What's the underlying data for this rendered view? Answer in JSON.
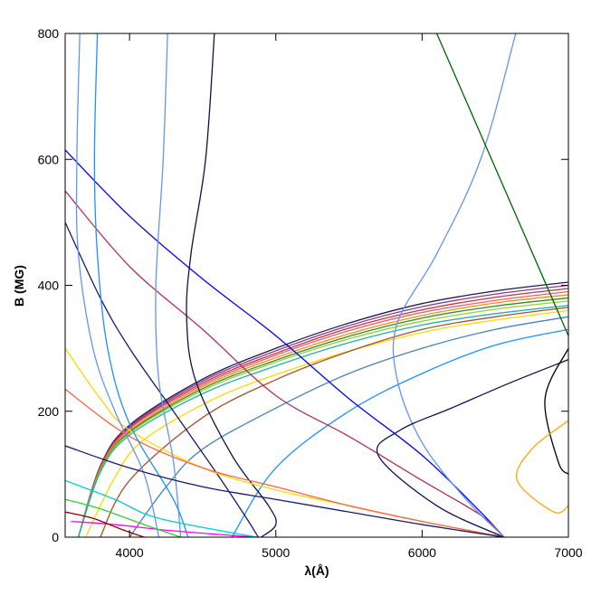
{
  "chart_data": {
    "type": "line",
    "xlabel": "λ(Å)",
    "ylabel": "B (MG)",
    "xlim": [
      3560,
      7000
    ],
    "ylim": [
      0,
      800
    ],
    "xticks": [
      4000,
      5000,
      6000,
      7000
    ],
    "yticks": [
      0,
      200,
      400,
      600,
      800
    ],
    "series": [
      {
        "color": "#1a1a5e",
        "x": [
          3650,
          3800,
          4000,
          4500,
          5000,
          5500,
          6000,
          6500,
          7000
        ],
        "values": [
          0,
          113,
          178,
          251,
          300,
          340,
          371,
          391,
          405
        ]
      },
      {
        "color": "#8b3a8b",
        "x": [
          3650,
          3800,
          4000,
          4500,
          5000,
          5500,
          6000,
          6500,
          7000
        ],
        "values": [
          0,
          112,
          176,
          248,
          296,
          336,
          366,
          386,
          400
        ]
      },
      {
        "color": "#c8303a",
        "x": [
          3650,
          3800,
          4000,
          4500,
          5000,
          5500,
          6000,
          6500,
          7000
        ],
        "values": [
          0,
          111,
          174,
          245,
          292,
          332,
          361,
          381,
          395
        ]
      },
      {
        "color": "#e0607a",
        "x": [
          3650,
          3800,
          4000,
          4500,
          5000,
          5500,
          6000,
          6500,
          7000
        ],
        "values": [
          0,
          109,
          172,
          242,
          289,
          328,
          357,
          376,
          390
        ]
      },
      {
        "color": "#ff8c00",
        "x": [
          3650,
          3800,
          4000,
          4500,
          5000,
          5500,
          6000,
          6500,
          7000
        ],
        "values": [
          0,
          108,
          169,
          239,
          285,
          323,
          352,
          372,
          385
        ]
      },
      {
        "color": "#2e8b2e",
        "x": [
          3650,
          3800,
          4000,
          4500,
          5000,
          5500,
          6000,
          6500,
          7000
        ],
        "values": [
          0,
          106,
          167,
          236,
          281,
          319,
          348,
          367,
          380
        ]
      },
      {
        "color": "#9acd32",
        "x": [
          3650,
          3800,
          4000,
          4500,
          5000,
          5500,
          6000,
          6500,
          7000
        ],
        "values": [
          0,
          105,
          165,
          233,
          278,
          315,
          343,
          362,
          375
        ]
      },
      {
        "color": "#20b2aa",
        "x": [
          3650,
          3800,
          4000,
          4500,
          5000,
          5500,
          6000,
          6500,
          7000
        ],
        "values": [
          0,
          103,
          162,
          228,
          272,
          309,
          337,
          355,
          368
        ]
      },
      {
        "color": "#ffd700",
        "x": [
          3700,
          3900,
          4100,
          4600,
          5100,
          5600,
          6100,
          6600,
          7000
        ],
        "values": [
          0,
          95,
          155,
          222,
          266,
          302,
          330,
          348,
          360
        ]
      },
      {
        "color": "#a0522d",
        "x": [
          3800,
          4000,
          4500,
          5000,
          5500,
          6000,
          6500,
          7000
        ],
        "values": [
          0,
          90,
          190,
          250,
          295,
          330,
          350,
          365
        ]
      },
      {
        "color": "#4682b4",
        "x": [
          4000,
          4250,
          4500,
          5000,
          5500,
          6000,
          6500,
          7000
        ],
        "values": [
          0,
          80,
          140,
          205,
          260,
          300,
          330,
          350
        ]
      },
      {
        "color": "#1e90ff",
        "x": [
          4700,
          5000,
          5500,
          6000,
          6500,
          7000
        ],
        "values": [
          0,
          110,
          200,
          260,
          305,
          330
        ]
      },
      {
        "color": "#0000ff",
        "x": [
          3560,
          4000,
          4500,
          5000,
          5500,
          6000,
          6400,
          6560
        ],
        "values": [
          615,
          510,
          410,
          320,
          220,
          130,
          40,
          0
        ]
      },
      {
        "color": "#b03060",
        "x": [
          3560,
          4000,
          4500,
          5000,
          5500,
          6000,
          6400,
          6560
        ],
        "values": [
          550,
          430,
          330,
          225,
          160,
          90,
          35,
          0
        ]
      },
      {
        "color": "#191970",
        "x": [
          3560,
          3800,
          4000,
          4300,
          4600,
          4800,
          4880
        ],
        "values": [
          500,
          380,
          300,
          200,
          100,
          30,
          0
        ]
      },
      {
        "color": "#10104a",
        "x": [
          4580,
          4520,
          4420,
          4390,
          4450,
          4700,
          4950,
          5000,
          4900
        ],
        "values": [
          800,
          600,
          450,
          350,
          250,
          130,
          50,
          20,
          0
        ]
      },
      {
        "color": "#6495ed",
        "x": [
          6640,
          6400,
          6100,
          5830,
          5830,
          6000,
          6300,
          6560
        ],
        "values": [
          800,
          600,
          450,
          340,
          250,
          150,
          60,
          0
        ]
      },
      {
        "color": "#006400",
        "x": [
          6100,
          6400,
          6700,
          7000
        ],
        "values": [
          800,
          640,
          480,
          320
        ]
      },
      {
        "color": "#000000",
        "x": [
          7000,
          6840,
          6930,
          7000
        ],
        "values": [
          300,
          220,
          120,
          100
        ]
      },
      {
        "color": "#101050",
        "x": [
          7000,
          6600,
          6200,
          5850,
          5700,
          6100,
          6560
        ],
        "values": [
          282,
          245,
          205,
          170,
          130,
          50,
          0
        ]
      },
      {
        "color": "#ffa500",
        "x": [
          7000,
          6750,
          6650,
          6900,
          7000
        ],
        "values": [
          185,
          140,
          90,
          40,
          50
        ]
      },
      {
        "color": "#ffd700",
        "x": [
          3560,
          3800,
          4000,
          4500,
          5000,
          5500,
          6000,
          6560
        ],
        "values": [
          300,
          220,
          170,
          110,
          75,
          50,
          25,
          0
        ]
      },
      {
        "color": "#ff6347",
        "x": [
          3560,
          4000,
          4500,
          5000,
          5500,
          6000,
          6560
        ],
        "values": [
          235,
          160,
          110,
          80,
          50,
          25,
          0
        ]
      },
      {
        "color": "#6495ed",
        "x": [
          4260,
          4230,
          4180,
          4200,
          4300,
          4350
        ],
        "values": [
          800,
          600,
          400,
          250,
          120,
          0
        ]
      },
      {
        "color": "#1e90ff",
        "x": [
          3780,
          3760,
          3780,
          3850,
          4000,
          4300,
          4400
        ],
        "values": [
          800,
          600,
          450,
          300,
          180,
          60,
          0
        ]
      },
      {
        "color": "#6495ed",
        "x": [
          3660,
          3640,
          3650,
          3750,
          3900,
          4100,
          4200
        ],
        "values": [
          800,
          600,
          450,
          300,
          200,
          100,
          0
        ]
      },
      {
        "color": "#191970",
        "x": [
          3560,
          4000,
          4500,
          5000,
          5500,
          6000,
          6560
        ],
        "values": [
          145,
          110,
          80,
          60,
          40,
          20,
          0
        ]
      },
      {
        "color": "#ff00ff",
        "x": [
          3600,
          3900,
          4300,
          4860
        ],
        "values": [
          25,
          20,
          10,
          0
        ]
      },
      {
        "color": "#32cd32",
        "x": [
          3560,
          3800,
          4100,
          4350
        ],
        "values": [
          60,
          45,
          20,
          0
        ]
      },
      {
        "color": "#00ced1",
        "x": [
          3560,
          3900,
          4200,
          4870
        ],
        "values": [
          90,
          60,
          30,
          0
        ]
      },
      {
        "color": "#8b0000",
        "x": [
          3560,
          3750,
          3950,
          4100
        ],
        "values": [
          40,
          30,
          12,
          0
        ]
      }
    ]
  }
}
